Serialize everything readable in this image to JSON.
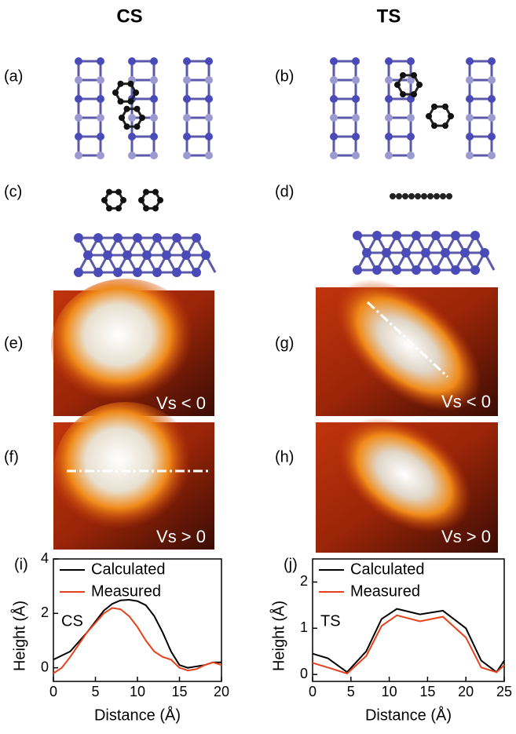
{
  "headers": [
    "CS",
    "TS"
  ],
  "panel_labels": [
    "(a)",
    "(b)",
    "(c)",
    "(d)",
    "(e)",
    "(f)",
    "(g)",
    "(h)"
  ],
  "image_labels": [
    "Vs < 0",
    "Vs > 0",
    "Vs < 0",
    "Vs > 0"
  ],
  "chart_data": [
    {
      "type": "line",
      "panel_label": "(i)",
      "annotation": "CS",
      "x_label": "Distance (Å)",
      "y_label": "Height (Å)",
      "xlim": [
        0,
        20
      ],
      "xticks": [
        0,
        5,
        10,
        15,
        20
      ],
      "ylim": [
        -0.5,
        4
      ],
      "yticks": [
        0,
        2,
        4
      ],
      "series": [
        {
          "name": "Calculated",
          "color": "#000000",
          "x": [
            0,
            2,
            4,
            6,
            7,
            8,
            9,
            10,
            11,
            12,
            13,
            14,
            15,
            16,
            17,
            18,
            19,
            20
          ],
          "values": [
            0.3,
            0.6,
            1.3,
            2.1,
            2.35,
            2.48,
            2.5,
            2.45,
            2.3,
            1.9,
            1.3,
            0.6,
            0.1,
            0.0,
            0.05,
            0.1,
            0.2,
            0.2
          ]
        },
        {
          "name": "Measured",
          "color": "#e8401c",
          "x": [
            0,
            1,
            2,
            4,
            6,
            7,
            8,
            9,
            10,
            11,
            12,
            13,
            14,
            15,
            16,
            17,
            18,
            19,
            20
          ],
          "values": [
            -0.2,
            0.0,
            0.4,
            1.3,
            2.0,
            2.2,
            2.15,
            1.9,
            1.5,
            1.0,
            0.6,
            0.4,
            0.3,
            0.0,
            -0.1,
            -0.05,
            0.1,
            0.2,
            0.1
          ]
        }
      ]
    },
    {
      "type": "line",
      "panel_label": "(j)",
      "annotation": "TS",
      "x_label": "Distance (Å)",
      "y_label": "Height (Å)",
      "xlim": [
        0,
        25
      ],
      "xticks": [
        0,
        5,
        10,
        15,
        20,
        25
      ],
      "ylim": [
        -0.15,
        2.5
      ],
      "yticks": [
        0,
        1,
        2
      ],
      "series": [
        {
          "name": "Calculated",
          "color": "#000000",
          "x": [
            0,
            2,
            4.5,
            7,
            9,
            11,
            14,
            17,
            20,
            22,
            24,
            25
          ],
          "values": [
            0.45,
            0.35,
            0.05,
            0.5,
            1.2,
            1.42,
            1.3,
            1.38,
            1.0,
            0.3,
            0.05,
            0.3
          ]
        },
        {
          "name": "Measured",
          "color": "#e8401c",
          "x": [
            0,
            2,
            4.5,
            7,
            9,
            11,
            14,
            17,
            20,
            22,
            24,
            25
          ],
          "values": [
            0.25,
            0.15,
            0.02,
            0.4,
            1.05,
            1.28,
            1.15,
            1.25,
            0.8,
            0.15,
            0.05,
            0.2
          ]
        }
      ]
    }
  ]
}
